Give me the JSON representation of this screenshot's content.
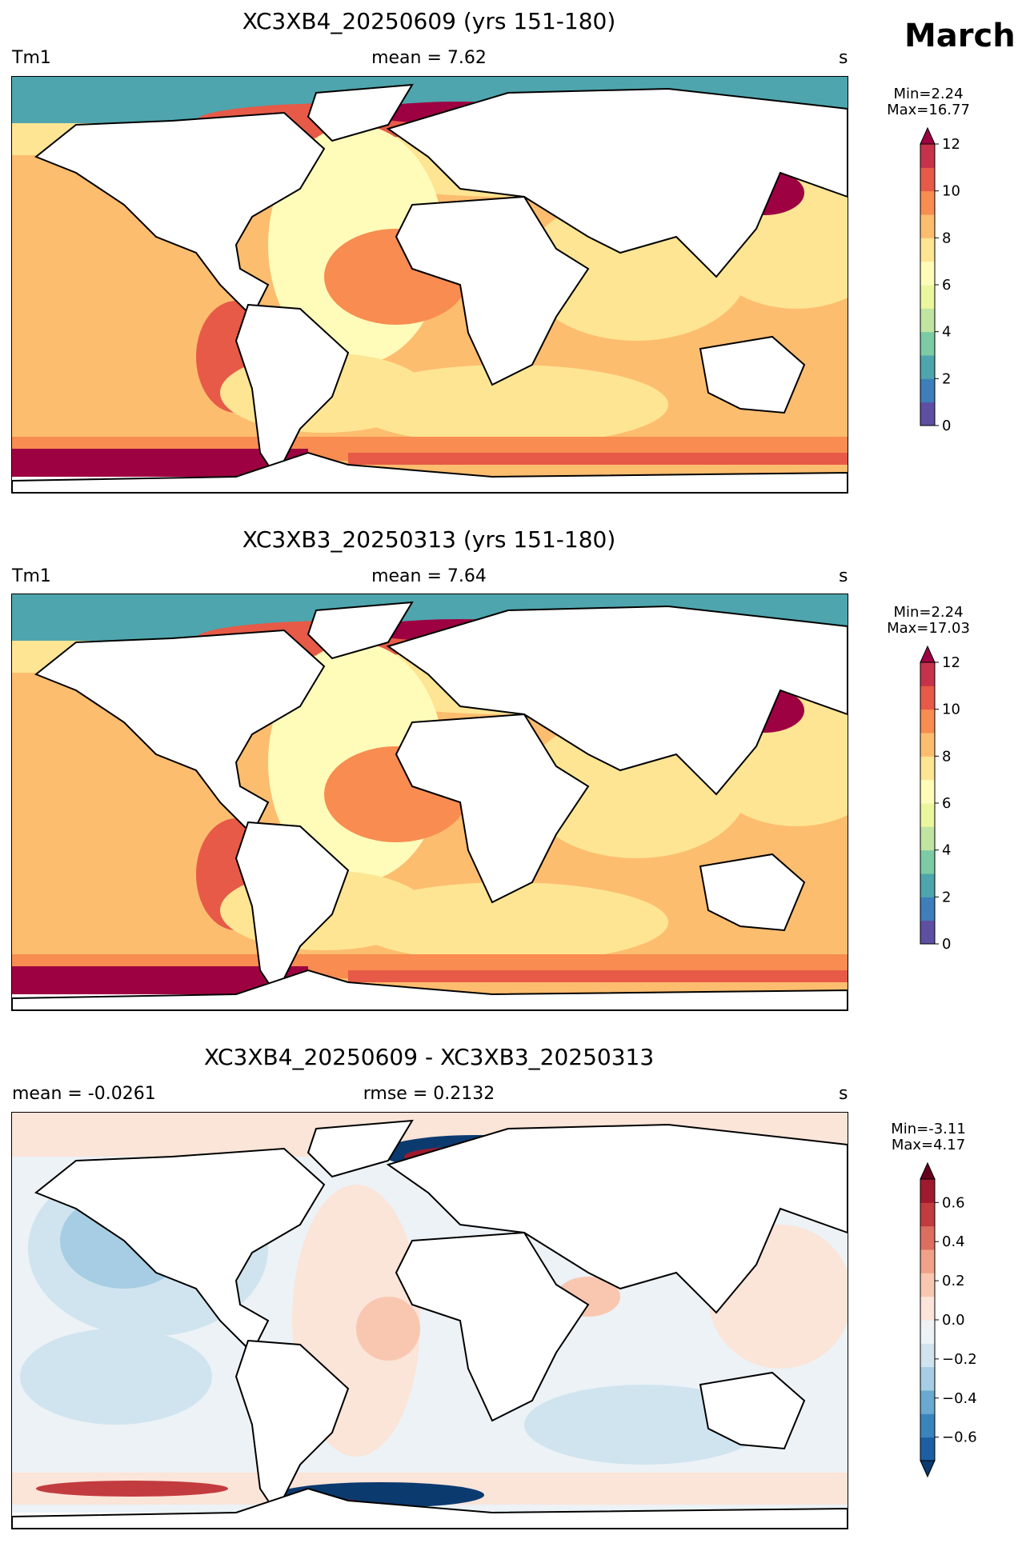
{
  "figure": {
    "month": "March",
    "panels": [
      {
        "title": "XC3XB4_20250609 (yrs 151-180)",
        "left_label": "Tm1",
        "center_label": "mean = 7.62",
        "right_label": "s",
        "min_text": "Min=2.24",
        "max_text": "Max=16.77",
        "colorbar": {
          "ticks": [
            "0",
            "2",
            "4",
            "6",
            "8",
            "10",
            "12"
          ],
          "colors": [
            "#5e4fa2",
            "#3e7ebb",
            "#4ea5ad",
            "#7ccba5",
            "#bfe5a0",
            "#eaf79e",
            "#fffcba",
            "#fee593",
            "#fdbd6f",
            "#f88c51",
            "#e75a47",
            "#c7324b"
          ],
          "extend_max": "#9e0142"
        }
      },
      {
        "title": "XC3XB3_20250313 (yrs 151-180)",
        "left_label": "Tm1",
        "center_label": "mean = 7.64",
        "right_label": "s",
        "min_text": "Min=2.24",
        "max_text": "Max=17.03",
        "colorbar": {
          "ticks": [
            "0",
            "2",
            "4",
            "6",
            "8",
            "10",
            "12"
          ],
          "colors": [
            "#5e4fa2",
            "#3e7ebb",
            "#4ea5ad",
            "#7ccba5",
            "#bfe5a0",
            "#eaf79e",
            "#fffcba",
            "#fee593",
            "#fdbd6f",
            "#f88c51",
            "#e75a47",
            "#c7324b"
          ],
          "extend_max": "#9e0142"
        }
      },
      {
        "title": "XC3XB4_20250609 - XC3XB3_20250313",
        "left_label": "mean = -0.0261",
        "center_label": "rmse = 0.2132",
        "right_label": "s",
        "min_text": "Min=-3.11",
        "max_text": "Max=4.17",
        "colorbar": {
          "ticks": [
            "0.6",
            "0.4",
            "0.2",
            "0.0",
            "−0.2",
            "−0.4",
            "−0.6"
          ],
          "colors": [
            "#1d5fa3",
            "#3a84bc",
            "#6aa9d0",
            "#a6cde3",
            "#d0e4ef",
            "#ecf2f6",
            "#fbe4d8",
            "#f9c7b0",
            "#f1a188",
            "#dc6e60",
            "#c23b3f",
            "#9f1a2d"
          ],
          "extend_min": "#0b3a6f",
          "extend_max": "#67001f"
        }
      }
    ]
  }
}
